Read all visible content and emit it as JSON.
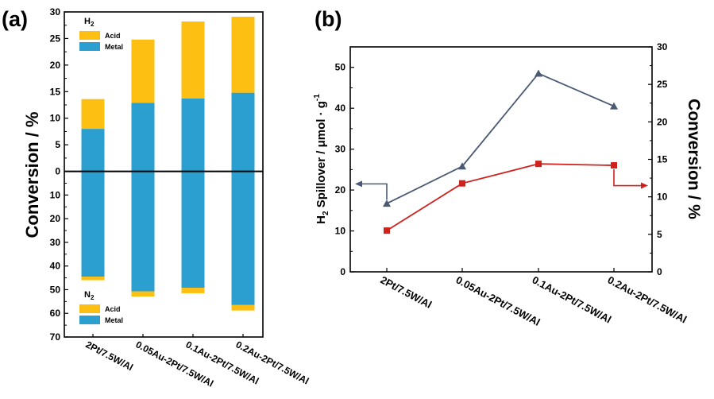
{
  "colors": {
    "acid": "#FDBF11",
    "metal": "#2A9FD0",
    "spillover_line": "#4A5A73",
    "conversion_line": "#D0211D",
    "axis": "#000000"
  },
  "chart_data": [
    {
      "panel_label": "(a)",
      "type": "bar",
      "stacked": true,
      "ylabel": "Conversion / %",
      "ylim_top": [
        0,
        30
      ],
      "ylim_bottom": [
        0,
        70
      ],
      "yticks_top": [
        "30",
        "25",
        "20",
        "15",
        "10",
        "5",
        "0"
      ],
      "yticks_bottom": [
        "10",
        "20",
        "30",
        "40",
        "50",
        "60",
        "70"
      ],
      "categories": [
        "2Pt/7.5W/Al",
        "0.05Au-2Pt/7.5W/Al",
        "0.1Au-2Pt/7.5W/Al",
        "0.2Au-2Pt/7.5W/Al"
      ],
      "legend_h2": {
        "gas": "H",
        "subscript": "2",
        "items": [
          "Acid",
          "Metal"
        ]
      },
      "legend_n2": {
        "gas": "N",
        "subscript": "2",
        "items": [
          "Acid",
          "Metal"
        ]
      },
      "h2_series": [
        {
          "name": "Metal",
          "values": [
            8.0,
            12.9,
            13.7,
            14.8
          ]
        },
        {
          "name": "Acid",
          "values": [
            5.6,
            11.9,
            14.5,
            14.3
          ]
        }
      ],
      "n2_series": [
        {
          "name": "Metal",
          "values": [
            44.5,
            50.7,
            49.2,
            56.5
          ]
        },
        {
          "name": "Acid",
          "values": [
            1.5,
            2.2,
            2.3,
            2.3
          ]
        }
      ]
    },
    {
      "panel_label": "(b)",
      "type": "line",
      "ylabel_left": {
        "prefix": "H",
        "subscript": "2",
        "text": " Spillover  / μmol · g",
        "superscript": "-1"
      },
      "ylabel_right": "Conversion / %",
      "ylim_left": [
        0,
        55
      ],
      "ylim_right": [
        0,
        30
      ],
      "yticks_left": [
        "0",
        "10",
        "20",
        "30",
        "40",
        "50"
      ],
      "yticks_right": [
        "0",
        "5",
        "10",
        "15",
        "20",
        "25",
        "30"
      ],
      "categories": [
        "2Pt/7.5W/Al",
        "0.05Au-2Pt/7.5W/Al",
        "0.1Au-2Pt/7.5W/Al",
        "0.2Au-2Pt/7.5W/Al"
      ],
      "series": [
        {
          "axis": "left",
          "marker": "triangle",
          "values": [
            16.7,
            25.8,
            48.5,
            40.5
          ]
        },
        {
          "axis": "right",
          "marker": "square",
          "values": [
            5.5,
            11.8,
            14.4,
            14.2
          ]
        }
      ]
    }
  ]
}
